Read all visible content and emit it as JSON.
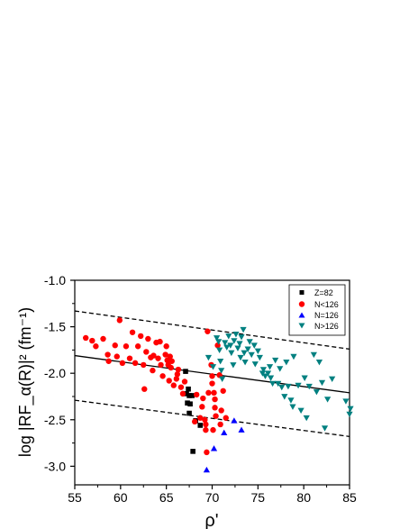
{
  "chart_data": {
    "type": "scatter",
    "xlabel": "ρ'",
    "ylabel": "log |RF_α(R)|² (fm⁻¹)",
    "xlim": [
      55,
      85
    ],
    "ylim": [
      -3.2,
      -1.0
    ],
    "x_ticks": [
      "55",
      "60",
      "65",
      "70",
      "75",
      "80",
      "85"
    ],
    "y_ticks": [
      "-1.0",
      "-1.5",
      "-2.0",
      "-2.5",
      "-3.0"
    ],
    "legend_position": "top-right",
    "fit_line": {
      "style": "solid",
      "x": [
        55,
        85
      ],
      "y": [
        -1.81,
        -2.21
      ]
    },
    "bound_lines": [
      {
        "style": "dashed",
        "x": [
          55,
          85
        ],
        "y": [
          -1.33,
          -1.74
        ]
      },
      {
        "style": "dashed",
        "x": [
          55,
          85
        ],
        "y": [
          -2.29,
          -2.68
        ]
      }
    ],
    "series": [
      {
        "name": "Z=82",
        "marker": "square",
        "color": "#000000",
        "points": [
          [
            67.1,
            -1.98
          ],
          [
            67.4,
            -2.17
          ],
          [
            67.2,
            -2.22
          ],
          [
            67.5,
            -2.24
          ],
          [
            67.8,
            -2.24
          ],
          [
            67.3,
            -2.32
          ],
          [
            67.6,
            -2.33
          ],
          [
            67.5,
            -2.43
          ],
          [
            68.2,
            -2.51
          ],
          [
            68.7,
            -2.56
          ],
          [
            67.9,
            -2.84
          ]
        ]
      },
      {
        "name": "N<126",
        "marker": "circle",
        "color": "#ff0000",
        "points": [
          [
            56.2,
            -1.62
          ],
          [
            56.9,
            -1.65
          ],
          [
            57.3,
            -1.71
          ],
          [
            58.1,
            -1.63
          ],
          [
            58.6,
            -1.8
          ],
          [
            58.7,
            -1.87
          ],
          [
            59.4,
            -1.7
          ],
          [
            59.6,
            -1.82
          ],
          [
            59.9,
            -1.43
          ],
          [
            60.2,
            -1.89
          ],
          [
            60.6,
            -1.71
          ],
          [
            61.0,
            -1.84
          ],
          [
            61.3,
            -1.56
          ],
          [
            61.6,
            -1.89
          ],
          [
            61.9,
            -1.71
          ],
          [
            62.2,
            -1.6
          ],
          [
            62.5,
            -1.91
          ],
          [
            62.8,
            -1.77
          ],
          [
            62.6,
            -2.17
          ],
          [
            63.0,
            -1.63
          ],
          [
            63.3,
            -1.83
          ],
          [
            63.5,
            -1.97
          ],
          [
            63.6,
            -1.81
          ],
          [
            63.9,
            -1.67
          ],
          [
            64.1,
            -1.84
          ],
          [
            64.3,
            -1.66
          ],
          [
            64.4,
            -1.91
          ],
          [
            64.6,
            -2.03
          ],
          [
            64.9,
            -1.8
          ],
          [
            65.0,
            -1.71
          ],
          [
            65.1,
            -1.86
          ],
          [
            65.2,
            -1.91
          ],
          [
            65.3,
            -2.08
          ],
          [
            65.4,
            -1.82
          ],
          [
            65.5,
            -1.94
          ],
          [
            65.6,
            -1.87
          ],
          [
            65.8,
            -2.13
          ],
          [
            66.1,
            -2.06
          ],
          [
            66.2,
            -2.01
          ],
          [
            66.3,
            -1.96
          ],
          [
            66.6,
            -2.15
          ],
          [
            66.8,
            -2.22
          ],
          [
            67.0,
            -2.09
          ],
          [
            68.1,
            -2.52
          ],
          [
            68.3,
            -2.23
          ],
          [
            68.7,
            -2.48
          ],
          [
            68.9,
            -2.36
          ],
          [
            69.0,
            -2.27
          ],
          [
            69.2,
            -2.5
          ],
          [
            69.3,
            -2.55
          ],
          [
            69.3,
            -2.61
          ],
          [
            69.4,
            -2.85
          ],
          [
            69.6,
            -2.21
          ],
          [
            69.5,
            -1.55
          ],
          [
            69.9,
            -1.91
          ],
          [
            70.0,
            -2.03
          ],
          [
            70.0,
            -2.11
          ],
          [
            70.2,
            -2.21
          ],
          [
            70.3,
            -2.28
          ],
          [
            70.3,
            -2.37
          ],
          [
            70.4,
            -2.46
          ],
          [
            70.1,
            -2.61
          ],
          [
            70.6,
            -1.7
          ],
          [
            70.8,
            -2.02
          ],
          [
            71.0,
            -2.4
          ],
          [
            70.9,
            -2.55
          ],
          [
            71.2,
            -2.19
          ],
          [
            71.5,
            -2.48
          ]
        ]
      },
      {
        "name": "N=126",
        "marker": "triangle-up",
        "color": "#0000ff",
        "points": [
          [
            69.4,
            -3.04
          ],
          [
            70.2,
            -2.81
          ],
          [
            71.3,
            -2.64
          ],
          [
            72.4,
            -2.51
          ],
          [
            73.2,
            -2.61
          ]
        ]
      },
      {
        "name": "N>126",
        "marker": "triangle-down",
        "color": "#008080",
        "points": [
          [
            69.6,
            -1.83
          ],
          [
            70.1,
            -1.93
          ],
          [
            70.5,
            -1.62
          ],
          [
            70.7,
            -1.66
          ],
          [
            70.8,
            -1.75
          ],
          [
            70.9,
            -1.87
          ],
          [
            71.0,
            -1.97
          ],
          [
            71.1,
            -2.06
          ],
          [
            71.4,
            -1.67
          ],
          [
            71.6,
            -1.72
          ],
          [
            71.8,
            -1.6
          ],
          [
            72.0,
            -1.7
          ],
          [
            72.1,
            -1.78
          ],
          [
            72.3,
            -1.91
          ],
          [
            72.4,
            -1.65
          ],
          [
            72.6,
            -1.58
          ],
          [
            72.8,
            -1.73
          ],
          [
            73.0,
            -1.68
          ],
          [
            73.1,
            -1.83
          ],
          [
            73.2,
            -1.61
          ],
          [
            73.4,
            -1.53
          ],
          [
            73.5,
            -1.78
          ],
          [
            73.6,
            -1.88
          ],
          [
            73.9,
            -1.74
          ],
          [
            74.1,
            -1.66
          ],
          [
            74.3,
            -1.8
          ],
          [
            74.6,
            -1.7
          ],
          [
            74.7,
            -1.9
          ],
          [
            75.0,
            -1.76
          ],
          [
            75.2,
            -1.83
          ],
          [
            75.5,
            -2.0
          ],
          [
            75.6,
            -1.96
          ],
          [
            75.8,
            -2.03
          ],
          [
            76.1,
            -2.0
          ],
          [
            76.3,
            -1.93
          ],
          [
            76.4,
            -2.05
          ],
          [
            76.6,
            -2.11
          ],
          [
            76.9,
            -1.86
          ],
          [
            77.2,
            -2.11
          ],
          [
            77.4,
            -1.95
          ],
          [
            77.6,
            -2.15
          ],
          [
            77.9,
            -2.25
          ],
          [
            78.1,
            -1.88
          ],
          [
            78.3,
            -2.14
          ],
          [
            78.6,
            -2.29
          ],
          [
            78.8,
            -2.36
          ],
          [
            78.9,
            -1.82
          ],
          [
            79.4,
            -2.13
          ],
          [
            79.7,
            -2.4
          ],
          [
            80.1,
            -2.05
          ],
          [
            80.3,
            -2.48
          ],
          [
            80.6,
            -2.14
          ],
          [
            81.1,
            -1.8
          ],
          [
            81.4,
            -2.2
          ],
          [
            81.7,
            -1.88
          ],
          [
            82.0,
            -2.1
          ],
          [
            82.3,
            -2.59
          ],
          [
            82.6,
            -2.28
          ],
          [
            83.1,
            -2.06
          ],
          [
            84.6,
            -2.3
          ],
          [
            85.1,
            -2.38
          ],
          [
            85.0,
            -2.44
          ]
        ]
      }
    ]
  },
  "colors": {
    "axis": "#000000",
    "background": "#ffffff"
  }
}
